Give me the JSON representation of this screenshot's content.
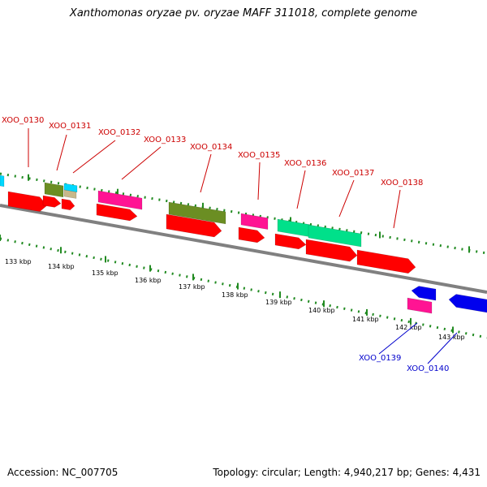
{
  "title": "Xanthomonas oryzae pv. oryzae MAFF 311018, complete genome",
  "accession_label": "Accession: NC_007705",
  "summary_label": "Topology: circular; Length: 4,940,217 bp; Genes: 4,431",
  "colors": {
    "backbone": "#808080",
    "ticks": "#228b22",
    "upper_labels": "#cc0000",
    "lower_labels": "#0000cc",
    "red": "#ff0000",
    "magenta": "#ff1493",
    "olive": "#6b8e23",
    "spring": "#00e08a",
    "cyan": "#00d8ff",
    "tan": "#c8b88a",
    "blue": "#0000ee"
  },
  "scale": {
    "unit": "kbp",
    "ticks": [
      {
        "value": 133,
        "label": "133 kbp"
      },
      {
        "value": 134,
        "label": "134 kbp"
      },
      {
        "value": 135,
        "label": "135 kbp"
      },
      {
        "value": 136,
        "label": "136 kbp"
      },
      {
        "value": 137,
        "label": "137 kbp"
      },
      {
        "value": 138,
        "label": "138 kbp"
      },
      {
        "value": 139,
        "label": "139 kbp"
      },
      {
        "value": 140,
        "label": "140 kbp"
      },
      {
        "value": 141,
        "label": "141 kbp"
      },
      {
        "value": 142,
        "label": "142 kbp"
      },
      {
        "value": 143,
        "label": "143 kbp"
      }
    ]
  },
  "gene_labels": [
    {
      "text": "XOO_0130",
      "strand": "plus"
    },
    {
      "text": "XOO_0131",
      "strand": "plus"
    },
    {
      "text": "XOO_0132",
      "strand": "plus"
    },
    {
      "text": "XOO_0133",
      "strand": "plus"
    },
    {
      "text": "XOO_0134",
      "strand": "plus"
    },
    {
      "text": "XOO_0135",
      "strand": "plus"
    },
    {
      "text": "XOO_0136",
      "strand": "plus"
    },
    {
      "text": "XOO_0137",
      "strand": "plus"
    },
    {
      "text": "XOO_0138",
      "strand": "plus"
    },
    {
      "text": "XOO_0139",
      "strand": "minus"
    },
    {
      "text": "XOO_0140",
      "strand": "minus"
    }
  ],
  "features": [
    {
      "track": "cds-plus",
      "color": "red",
      "strand": "plus"
    },
    {
      "track": "cds-plus",
      "color": "red",
      "strand": "plus"
    },
    {
      "track": "cds-plus",
      "color": "red",
      "strand": "plus"
    },
    {
      "track": "cds-plus",
      "color": "red",
      "strand": "plus"
    },
    {
      "track": "cds-plus",
      "color": "red",
      "strand": "plus"
    },
    {
      "track": "cds-plus",
      "color": "red",
      "strand": "plus"
    },
    {
      "track": "cds-plus",
      "color": "red",
      "strand": "plus"
    },
    {
      "track": "cds-plus",
      "color": "red",
      "strand": "plus"
    },
    {
      "track": "cds-plus",
      "color": "red",
      "strand": "plus"
    },
    {
      "track": "cog-plus",
      "color": "cyan",
      "strand": "plus"
    },
    {
      "track": "cog-plus",
      "color": "olive",
      "strand": "plus"
    },
    {
      "track": "cog-plus",
      "color": "cyan",
      "strand": "plus"
    },
    {
      "track": "cog-plus",
      "color": "tan",
      "strand": "plus"
    },
    {
      "track": "cog-plus",
      "color": "magenta",
      "strand": "plus"
    },
    {
      "track": "cog-plus",
      "color": "olive",
      "strand": "plus"
    },
    {
      "track": "cog-plus",
      "color": "magenta",
      "strand": "plus"
    },
    {
      "track": "cog-plus",
      "color": "spring",
      "strand": "plus"
    },
    {
      "track": "cog-plus",
      "color": "spring",
      "strand": "plus"
    },
    {
      "track": "cds-minus",
      "color": "blue",
      "strand": "minus"
    },
    {
      "track": "cds-minus",
      "color": "blue",
      "strand": "minus"
    },
    {
      "track": "cog-minus",
      "color": "magenta",
      "strand": "minus"
    }
  ]
}
